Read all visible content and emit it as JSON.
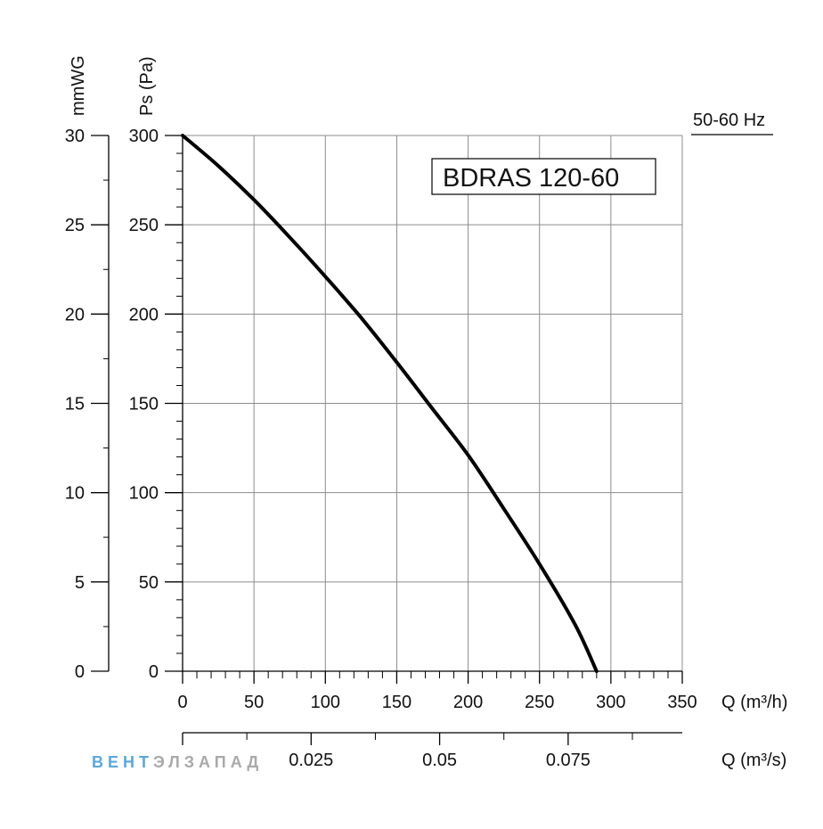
{
  "chart_data": {
    "type": "line",
    "title": "BDRAS 120-60",
    "frequency_label": "50-60 Hz",
    "x_axis": {
      "label": "Q (m³/h)",
      "ticks": [
        "0",
        "50",
        "100",
        "150",
        "200",
        "250",
        "300",
        "350"
      ],
      "xlim": [
        0,
        350
      ],
      "grid": true
    },
    "x2_axis": {
      "label": "Q (m³/s)",
      "ticks": [
        "0.025",
        "0.05",
        "0.075"
      ],
      "xlim": [
        0,
        0.0972
      ]
    },
    "y_axis": {
      "label": "Ps (Pa)",
      "ticks": [
        "0",
        "50",
        "100",
        "150",
        "200",
        "250",
        "300"
      ],
      "ylim": [
        0,
        300
      ],
      "grid": true
    },
    "y2_axis": {
      "label": "mmWG",
      "ticks": [
        "0",
        "5",
        "10",
        "15",
        "20",
        "25",
        "30"
      ],
      "ylim": [
        0,
        30
      ]
    },
    "series": [
      {
        "x": [
          0,
          25,
          50,
          75,
          100,
          125,
          150,
          175,
          200,
          225,
          250,
          275,
          290
        ],
        "y": [
          300,
          283,
          264,
          243,
          221,
          198,
          173,
          147,
          121,
          91,
          60,
          26,
          0
        ]
      }
    ],
    "colors": {
      "curve": "#000000",
      "grid": "#8c8c8c",
      "axis": "#000000"
    }
  },
  "watermark": {
    "text_left": "ВЕНТ",
    "text_mid": "ЭЛ",
    "text_right": "ЗАПАД",
    "colors": {
      "blue": "#5aa7dc",
      "grey": "#a9a9a9"
    }
  }
}
